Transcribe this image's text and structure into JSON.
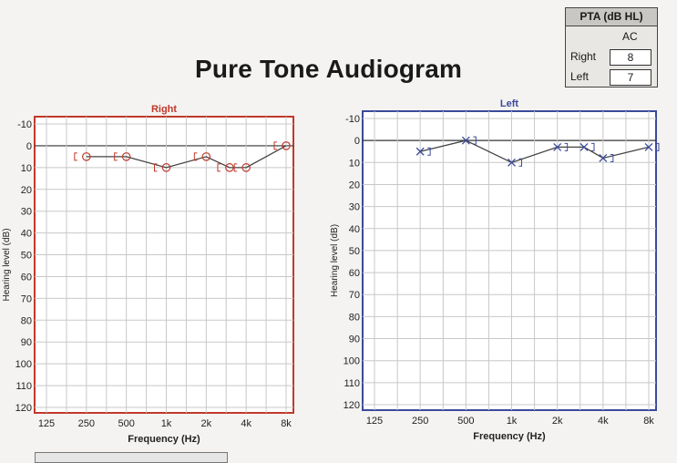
{
  "title": "Pure Tone Audiogram",
  "pta": {
    "header": "PTA (dB HL)",
    "column": "AC",
    "rows": [
      {
        "label": "Right",
        "value": "8"
      },
      {
        "label": "Left",
        "value": "7"
      }
    ]
  },
  "colors": {
    "right": "#c0392b",
    "left": "#3b4a9a",
    "grid": "#c8c8c8",
    "trace": "#444444"
  },
  "chart_data": [
    {
      "type": "line",
      "title": "Right",
      "xlabel": "Frequency (Hz)",
      "ylabel": "Hearing level (dB)",
      "x_ticks": [
        "125",
        "250",
        "500",
        "1k",
        "2k",
        "4k",
        "8k"
      ],
      "y_ticks": [
        "-10",
        "0",
        "10",
        "20",
        "30",
        "40",
        "50",
        "60",
        "70",
        "80",
        "90",
        "100",
        "110",
        "120"
      ],
      "ylim": [
        -10,
        120
      ],
      "y_inverted": true,
      "grid": true,
      "series": [
        {
          "marker": "circle",
          "x": [
            250,
            500,
            1000,
            2000,
            3000,
            4000,
            8000
          ],
          "y": [
            5,
            5,
            10,
            5,
            10,
            10,
            0
          ]
        }
      ]
    },
    {
      "type": "line",
      "title": "Left",
      "xlabel": "Frequency (Hz)",
      "ylabel": "Hearing level (dB)",
      "x_ticks": [
        "125",
        "250",
        "500",
        "1k",
        "2k",
        "4k",
        "8k"
      ],
      "y_ticks": [
        "-10",
        "0",
        "10",
        "20",
        "30",
        "40",
        "50",
        "60",
        "70",
        "80",
        "90",
        "100",
        "110",
        "120"
      ],
      "ylim": [
        -10,
        120
      ],
      "y_inverted": true,
      "grid": true,
      "series": [
        {
          "marker": "x",
          "x": [
            250,
            500,
            1000,
            2000,
            3000,
            4000,
            8000
          ],
          "y": [
            5,
            0,
            10,
            3,
            3,
            8,
            3
          ]
        }
      ]
    }
  ]
}
